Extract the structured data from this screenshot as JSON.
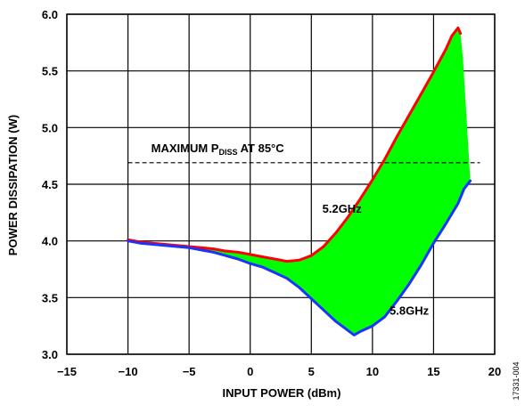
{
  "chart_data": {
    "type": "line",
    "title": "",
    "xlabel": "INPUT POWER (dBm)",
    "ylabel": "POWER DISSIPATION (W)",
    "xlim": [
      -15,
      20
    ],
    "ylim": [
      3.0,
      6.0
    ],
    "xticks": [
      -15,
      -10,
      -5,
      0,
      5,
      10,
      15,
      20
    ],
    "yticks": [
      3.0,
      3.5,
      4.0,
      4.5,
      5.0,
      5.5,
      6.0
    ],
    "xtick_labels": [
      "−15",
      "−10",
      "−5",
      "0",
      "5",
      "10",
      "15",
      "20"
    ],
    "ytick_labels": [
      "3.0",
      "3.5",
      "4.0",
      "4.5",
      "5.0",
      "5.5",
      "6.0"
    ],
    "grid": true,
    "band_fill_color": "#00ff00",
    "series": [
      {
        "name": "5.2GHz",
        "color": "#ff0000",
        "x": [
          -10,
          -9,
          -8,
          -7,
          -6,
          -5,
          -4,
          -3,
          -2,
          -1,
          0,
          1,
          2,
          3,
          4,
          5,
          6,
          7,
          8,
          9,
          10,
          11,
          12,
          13,
          14,
          15,
          16,
          16.5,
          17,
          17.2
        ],
        "y": [
          4.01,
          3.99,
          3.98,
          3.97,
          3.96,
          3.95,
          3.94,
          3.93,
          3.91,
          3.9,
          3.88,
          3.86,
          3.84,
          3.82,
          3.83,
          3.87,
          3.95,
          4.07,
          4.21,
          4.37,
          4.54,
          4.72,
          4.92,
          5.11,
          5.3,
          5.49,
          5.69,
          5.81,
          5.88,
          5.83
        ]
      },
      {
        "name": "5.8GHz",
        "color": "#1a33ff",
        "x": [
          -10,
          -9,
          -8,
          -7,
          -6,
          -5,
          -4,
          -3,
          -2,
          -1,
          0,
          1,
          2,
          3,
          4,
          5,
          6,
          7,
          8,
          8.5,
          9,
          10,
          11,
          12,
          13,
          14,
          15,
          16,
          17,
          17.5,
          18
        ],
        "y": [
          4.0,
          3.98,
          3.97,
          3.96,
          3.95,
          3.94,
          3.92,
          3.9,
          3.87,
          3.84,
          3.8,
          3.77,
          3.72,
          3.67,
          3.59,
          3.49,
          3.39,
          3.29,
          3.21,
          3.17,
          3.2,
          3.25,
          3.33,
          3.47,
          3.62,
          3.79,
          3.98,
          4.15,
          4.33,
          4.46,
          4.53
        ]
      }
    ],
    "band_right_edge": {
      "x": [
        17.2,
        17.4,
        17.7,
        18
      ],
      "y": [
        5.83,
        5.62,
        5.08,
        4.53
      ]
    },
    "reference_line": {
      "label_parts": [
        "MAXIMUM P",
        "DISS",
        " AT 85°C"
      ],
      "y": 4.69,
      "x_start": -10,
      "x_end": 18.8,
      "style": "dashed"
    },
    "annotations": [
      {
        "text": "5.2GHz",
        "x": 5.9,
        "y": 4.25
      },
      {
        "text": "5.8GHz",
        "x": 11.4,
        "y": 3.35
      }
    ]
  },
  "figure_id": "17331-004"
}
